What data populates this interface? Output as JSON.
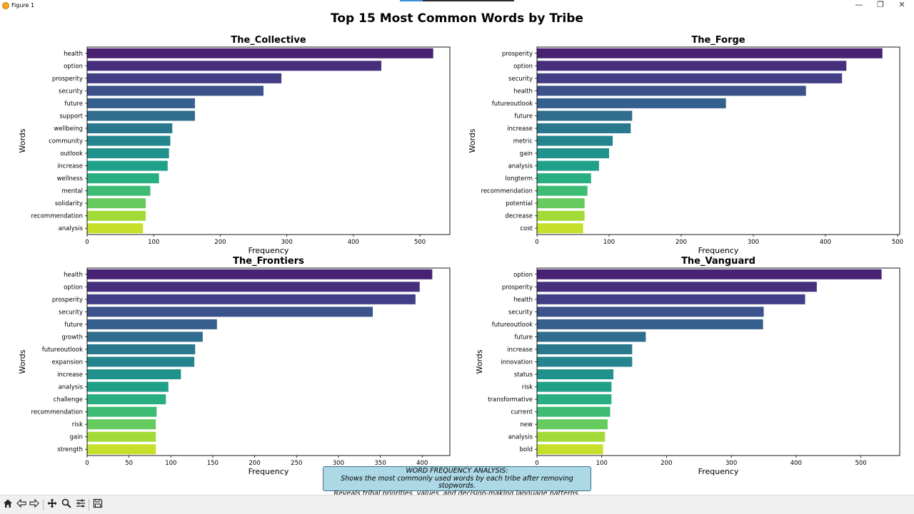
{
  "window": {
    "title": "Figure 1",
    "controls": {
      "minimize": "—",
      "restore": "❐",
      "close": "✕"
    }
  },
  "figure": {
    "suptitle": "Top 15 Most Common Words by Tribe"
  },
  "chart_data": [
    {
      "type": "bar",
      "orientation": "horizontal",
      "title": "The_Collective",
      "xlabel": "Frequency",
      "ylabel": "Words",
      "xlim": [
        0,
        545
      ],
      "xticks": [
        0,
        100,
        200,
        300,
        400,
        500
      ],
      "categories": [
        "health",
        "option",
        "prosperity",
        "security",
        "future",
        "support",
        "wellbeing",
        "community",
        "outlook",
        "increase",
        "wellness",
        "mental",
        "solidarity",
        "recommendation",
        "analysis"
      ],
      "values": [
        520,
        442,
        292,
        265,
        162,
        162,
        128,
        125,
        123,
        121,
        108,
        95,
        88,
        88,
        84
      ]
    },
    {
      "type": "bar",
      "orientation": "horizontal",
      "title": "The_Forge",
      "xlabel": "Frequency",
      "ylabel": "Words",
      "xlim": [
        0,
        503
      ],
      "xticks": [
        0,
        100,
        200,
        300,
        400,
        500
      ],
      "categories": [
        "prosperity",
        "option",
        "security",
        "health",
        "futureoutlook",
        "future",
        "increase",
        "metric",
        "gain",
        "analysis",
        "longterm",
        "recommendation",
        "potential",
        "decrease",
        "cost"
      ],
      "values": [
        479,
        429,
        423,
        373,
        262,
        132,
        130,
        105,
        100,
        86,
        75,
        70,
        66,
        66,
        64
      ]
    },
    {
      "type": "bar",
      "orientation": "horizontal",
      "title": "The_Frontiers",
      "xlabel": "Frequency",
      "ylabel": "Words",
      "xlim": [
        0,
        433
      ],
      "xticks": [
        0,
        50,
        100,
        150,
        200,
        250,
        300,
        350,
        400
      ],
      "categories": [
        "health",
        "option",
        "prosperity",
        "security",
        "future",
        "growth",
        "futureoutlook",
        "expansion",
        "increase",
        "analysis",
        "challenge",
        "recommendation",
        "risk",
        "gain",
        "strength"
      ],
      "values": [
        412,
        397,
        392,
        341,
        155,
        138,
        129,
        128,
        112,
        97,
        94,
        83,
        82,
        82,
        82
      ]
    },
    {
      "type": "bar",
      "orientation": "horizontal",
      "title": "The_Vanguard",
      "xlabel": "Frequency",
      "ylabel": "Words",
      "xlim": [
        0,
        560
      ],
      "xticks": [
        0,
        100,
        200,
        300,
        400,
        500
      ],
      "categories": [
        "option",
        "prosperity",
        "health",
        "security",
        "futureoutlook",
        "future",
        "increase",
        "innovation",
        "status",
        "risk",
        "transformative",
        "current",
        "new",
        "analysis",
        "bold"
      ],
      "values": [
        532,
        432,
        414,
        350,
        349,
        168,
        147,
        147,
        118,
        115,
        115,
        113,
        109,
        105,
        102
      ]
    }
  ],
  "annotation": {
    "line1": "WORD FREQUENCY ANALYSIS:",
    "line2": "Shows the most commonly used words by each tribe after removing stopwords.",
    "line3": "Reveals tribal priorities, values, and decision-making language patterns."
  },
  "palette": [
    "#482173",
    "#472f7d",
    "#433e85",
    "#3b528b",
    "#355f8d",
    "#2f6c8e",
    "#2a788e",
    "#25858e",
    "#21918c",
    "#1fa088",
    "#28ae80",
    "#3fbc73",
    "#65cb5e",
    "#a2da37",
    "#c6df2b"
  ],
  "toolbar": {
    "icons": [
      "home-icon",
      "back-icon",
      "forward-icon",
      "pan-icon",
      "zoom-icon",
      "configure-icon",
      "save-icon"
    ]
  }
}
